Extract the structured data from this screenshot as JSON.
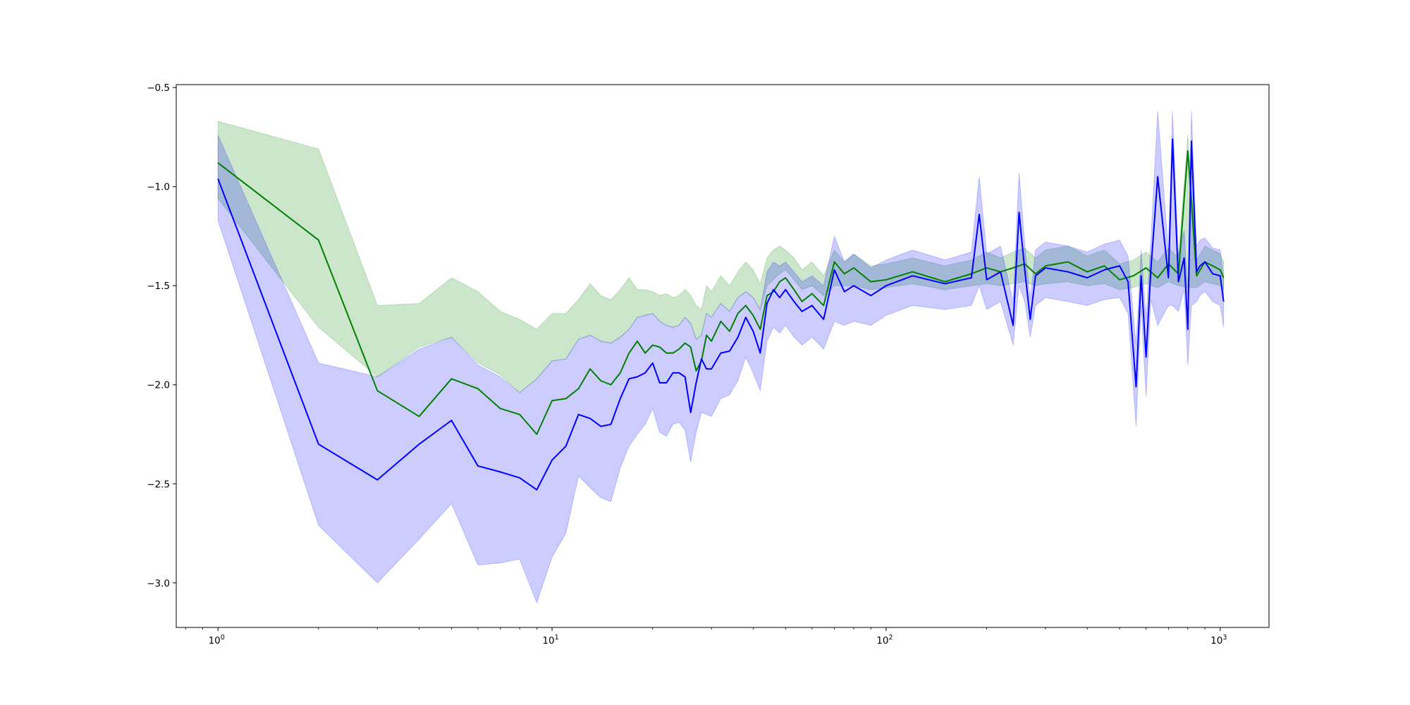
{
  "chart_data": {
    "type": "line",
    "title": "",
    "xlabel": "",
    "ylabel": "",
    "xscale": "log",
    "xlim": [
      0.75,
      1400
    ],
    "ylim": [
      -3.225,
      -0.485
    ],
    "grid": false,
    "legend": "none",
    "x_ticks": [
      {
        "base": "10",
        "exp": "0",
        "value": 1
      },
      {
        "base": "10",
        "exp": "1",
        "value": 10
      },
      {
        "base": "10",
        "exp": "2",
        "value": 100
      },
      {
        "base": "10",
        "exp": "3",
        "value": 1000
      }
    ],
    "y_ticks": [
      {
        "label": "−0.5",
        "value": -0.5
      },
      {
        "label": "−1.0",
        "value": -1.0
      },
      {
        "label": "−1.5",
        "value": -1.5
      },
      {
        "label": "−2.0",
        "value": -2.0
      },
      {
        "label": "−2.5",
        "value": -2.5
      },
      {
        "label": "−3.0",
        "value": -3.0
      }
    ],
    "series": [
      {
        "color": "#008000",
        "band_color": "#008000",
        "band_opacity": 0.2,
        "x": [
          1,
          2,
          3,
          4,
          5,
          6,
          7,
          8,
          9,
          10,
          11,
          12,
          13,
          14,
          15,
          16,
          17,
          18,
          19,
          20,
          21,
          22,
          23,
          24,
          25,
          26,
          27,
          28,
          29,
          30,
          32,
          34,
          36,
          38,
          40,
          42,
          44,
          46,
          48,
          50,
          53,
          56,
          60,
          65,
          70,
          75,
          80,
          90,
          100,
          120,
          150,
          180,
          200,
          220,
          240,
          260,
          280,
          300,
          350,
          400,
          450,
          500,
          550,
          600,
          650,
          700,
          750,
          800,
          850,
          900,
          950,
          1000,
          1024
        ],
        "y": [
          -0.88,
          -1.27,
          -2.03,
          -2.16,
          -1.97,
          -2.02,
          -2.12,
          -2.15,
          -2.25,
          -2.08,
          -2.07,
          -2.02,
          -1.92,
          -1.98,
          -2.0,
          -1.94,
          -1.84,
          -1.78,
          -1.84,
          -1.8,
          -1.81,
          -1.84,
          -1.84,
          -1.82,
          -1.79,
          -1.81,
          -1.93,
          -1.88,
          -1.75,
          -1.78,
          -1.68,
          -1.73,
          -1.64,
          -1.6,
          -1.65,
          -1.72,
          -1.55,
          -1.53,
          -1.48,
          -1.46,
          -1.52,
          -1.58,
          -1.54,
          -1.6,
          -1.38,
          -1.44,
          -1.41,
          -1.48,
          -1.47,
          -1.43,
          -1.48,
          -1.44,
          -1.41,
          -1.43,
          -1.41,
          -1.39,
          -1.44,
          -1.4,
          -1.38,
          -1.43,
          -1.4,
          -1.47,
          -1.45,
          -1.41,
          -1.46,
          -1.39,
          -1.44,
          -0.82,
          -1.45,
          -1.38,
          -1.4,
          -1.42,
          -1.46
        ],
        "lower": [
          -1.06,
          -1.71,
          -1.96,
          -1.81,
          -1.76,
          -1.89,
          -1.95,
          -2.04,
          -1.97,
          -1.88,
          -1.87,
          -1.77,
          -1.75,
          -1.78,
          -1.79,
          -1.76,
          -1.72,
          -1.66,
          -1.65,
          -1.64,
          -1.68,
          -1.7,
          -1.71,
          -1.7,
          -1.66,
          -1.69,
          -1.77,
          -1.75,
          -1.64,
          -1.66,
          -1.59,
          -1.63,
          -1.56,
          -1.53,
          -1.56,
          -1.62,
          -1.5,
          -1.47,
          -1.44,
          -1.42,
          -1.47,
          -1.52,
          -1.5,
          -1.55,
          -1.5,
          -1.5,
          -1.5,
          -1.52,
          -1.51,
          -1.49,
          -1.52,
          -1.5,
          -1.49,
          -1.5,
          -1.49,
          -1.48,
          -1.5,
          -1.49,
          -1.48,
          -1.5,
          -1.49,
          -1.52,
          -1.51,
          -1.49,
          -1.51,
          -1.48,
          -1.5,
          -1.51,
          -1.51,
          -1.48,
          -1.49,
          -1.5,
          -1.52
        ],
        "upper": [
          -0.67,
          -0.81,
          -1.6,
          -1.59,
          -1.46,
          -1.53,
          -1.63,
          -1.67,
          -1.72,
          -1.64,
          -1.64,
          -1.57,
          -1.49,
          -1.55,
          -1.57,
          -1.52,
          -1.46,
          -1.52,
          -1.52,
          -1.53,
          -1.55,
          -1.54,
          -1.56,
          -1.55,
          -1.52,
          -1.55,
          -1.6,
          -1.62,
          -1.5,
          -1.53,
          -1.45,
          -1.5,
          -1.43,
          -1.38,
          -1.42,
          -1.49,
          -1.36,
          -1.32,
          -1.3,
          -1.32,
          -1.36,
          -1.42,
          -1.38,
          -1.45,
          -1.32,
          -1.38,
          -1.34,
          -1.4,
          -1.39,
          -1.36,
          -1.4,
          -1.37,
          -1.33,
          -1.36,
          -1.33,
          -1.31,
          -1.36,
          -1.32,
          -1.3,
          -1.35,
          -1.32,
          -1.39,
          -1.37,
          -1.33,
          -1.38,
          -1.31,
          -1.36,
          -0.74,
          -1.37,
          -1.3,
          -1.32,
          -1.34,
          -1.38
        ]
      },
      {
        "color": "#0000ff",
        "band_color": "#0000ff",
        "band_opacity": 0.2,
        "x": [
          1,
          2,
          3,
          4,
          5,
          6,
          7,
          8,
          9,
          10,
          11,
          12,
          13,
          14,
          15,
          16,
          17,
          18,
          19,
          20,
          21,
          22,
          23,
          24,
          25,
          26,
          27,
          28,
          29,
          30,
          32,
          34,
          36,
          38,
          40,
          42,
          44,
          46,
          48,
          50,
          53,
          56,
          60,
          65,
          70,
          75,
          80,
          90,
          100,
          120,
          150,
          180,
          190,
          200,
          220,
          240,
          250,
          260,
          270,
          280,
          300,
          350,
          400,
          450,
          500,
          530,
          560,
          580,
          600,
          620,
          650,
          700,
          720,
          750,
          780,
          800,
          820,
          850,
          870,
          900,
          950,
          1000,
          1024
        ],
        "y": [
          -0.96,
          -2.3,
          -2.48,
          -2.3,
          -2.18,
          -2.41,
          -2.44,
          -2.47,
          -2.53,
          -2.38,
          -2.31,
          -2.15,
          -2.17,
          -2.21,
          -2.2,
          -2.07,
          -1.97,
          -1.96,
          -1.94,
          -1.89,
          -1.99,
          -1.99,
          -1.94,
          -1.94,
          -1.96,
          -2.14,
          -1.99,
          -1.87,
          -1.92,
          -1.92,
          -1.84,
          -1.83,
          -1.76,
          -1.66,
          -1.73,
          -1.84,
          -1.59,
          -1.52,
          -1.56,
          -1.52,
          -1.58,
          -1.63,
          -1.6,
          -1.67,
          -1.42,
          -1.53,
          -1.5,
          -1.55,
          -1.5,
          -1.45,
          -1.49,
          -1.46,
          -1.14,
          -1.47,
          -1.43,
          -1.7,
          -1.13,
          -1.42,
          -1.67,
          -1.45,
          -1.41,
          -1.43,
          -1.46,
          -1.42,
          -1.4,
          -1.48,
          -2.01,
          -1.45,
          -1.86,
          -1.42,
          -0.95,
          -1.46,
          -0.76,
          -1.48,
          -1.36,
          -1.72,
          -0.77,
          -1.43,
          -1.4,
          -1.38,
          -1.44,
          -1.45,
          -1.58
        ],
        "lower": [
          -1.17,
          -2.71,
          -3.0,
          -2.78,
          -2.6,
          -2.91,
          -2.9,
          -2.88,
          -3.1,
          -2.87,
          -2.75,
          -2.46,
          -2.52,
          -2.57,
          -2.59,
          -2.42,
          -2.31,
          -2.25,
          -2.2,
          -2.12,
          -2.24,
          -2.26,
          -2.2,
          -2.19,
          -2.23,
          -2.39,
          -2.24,
          -2.14,
          -2.15,
          -2.16,
          -2.07,
          -2.05,
          -1.98,
          -1.86,
          -1.94,
          -2.03,
          -1.78,
          -1.71,
          -1.74,
          -1.7,
          -1.76,
          -1.8,
          -1.76,
          -1.82,
          -1.68,
          -1.7,
          -1.68,
          -1.7,
          -1.65,
          -1.6,
          -1.62,
          -1.6,
          -1.5,
          -1.62,
          -1.58,
          -1.8,
          -1.5,
          -1.58,
          -1.76,
          -1.6,
          -1.56,
          -1.58,
          -1.6,
          -1.57,
          -1.56,
          -1.64,
          -2.21,
          -1.6,
          -2.06,
          -1.57,
          -1.7,
          -1.6,
          -1.6,
          -1.63,
          -1.52,
          -1.9,
          -1.6,
          -1.58,
          -1.55,
          -1.53,
          -1.58,
          -1.6,
          -1.71
        ],
        "upper": [
          -0.74,
          -1.89,
          -1.96,
          -1.82,
          -1.76,
          -1.9,
          -1.96,
          -2.04,
          -1.97,
          -1.88,
          -1.87,
          -1.77,
          -1.75,
          -1.78,
          -1.79,
          -1.76,
          -1.72,
          -1.66,
          -1.65,
          -1.64,
          -1.68,
          -1.7,
          -1.71,
          -1.7,
          -1.66,
          -1.69,
          -1.77,
          -1.75,
          -1.64,
          -1.66,
          -1.59,
          -1.63,
          -1.56,
          -1.53,
          -1.56,
          -1.62,
          -1.43,
          -1.38,
          -1.4,
          -1.38,
          -1.43,
          -1.48,
          -1.45,
          -1.5,
          -1.25,
          -1.38,
          -1.34,
          -1.41,
          -1.37,
          -1.32,
          -1.37,
          -1.33,
          -0.95,
          -1.34,
          -1.3,
          -1.58,
          -0.93,
          -1.29,
          -1.57,
          -1.32,
          -1.28,
          -1.3,
          -1.33,
          -1.29,
          -1.27,
          -1.35,
          -1.8,
          -1.32,
          -1.67,
          -1.28,
          -0.62,
          -1.33,
          -0.62,
          -1.35,
          -1.22,
          -1.55,
          -0.62,
          -1.3,
          -1.27,
          -1.26,
          -1.31,
          -1.32,
          -1.46
        ]
      }
    ]
  }
}
